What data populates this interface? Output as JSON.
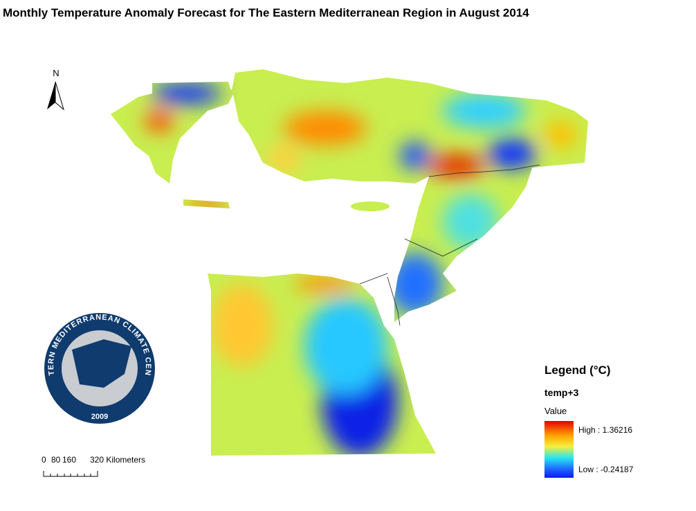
{
  "title": "Monthly Temperature Anomaly Forecast for The Eastern Mediterranean Region in August 2014",
  "north_arrow": "N",
  "legend": {
    "title": "Legend (°C)",
    "layer": "temp+3",
    "field": "Value",
    "high": "High : 1.36216",
    "low": "Low : -0.24187"
  },
  "scale_bar": {
    "labels": [
      "0",
      "80",
      "160",
      "320 Kilometers"
    ]
  },
  "logo": {
    "name": "EASTERN MEDITERRANEAN CLIMATE CENTRE",
    "year": "2009"
  }
}
